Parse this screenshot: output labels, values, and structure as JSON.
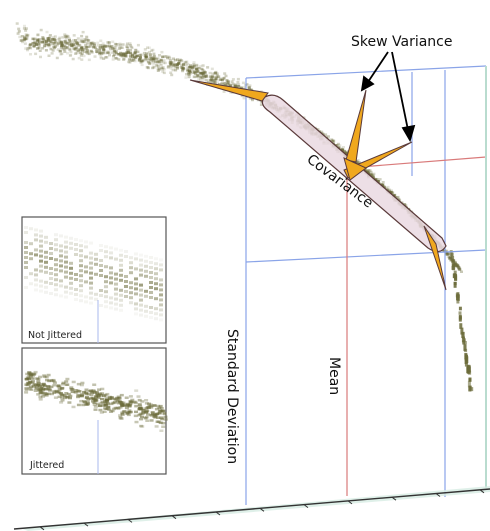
{
  "labels": {
    "skew_variance": "Skew Variance",
    "covariance": "Covariance",
    "standard_deviation": "Standard Deviation",
    "mean": "Mean"
  },
  "insets": {
    "not_jittered": "Not Jittered",
    "jittered": "Jittered"
  },
  "colors": {
    "points": "#6b6b3a",
    "grid_blue": "#8aa4e8",
    "mean_red": "#d97a7a",
    "glyph_orange": "#f0a81e",
    "glyph_outline": "#5a3a3a",
    "ellipse_fill": "#ead9e2",
    "floor_teal": "#b9dccf"
  }
}
